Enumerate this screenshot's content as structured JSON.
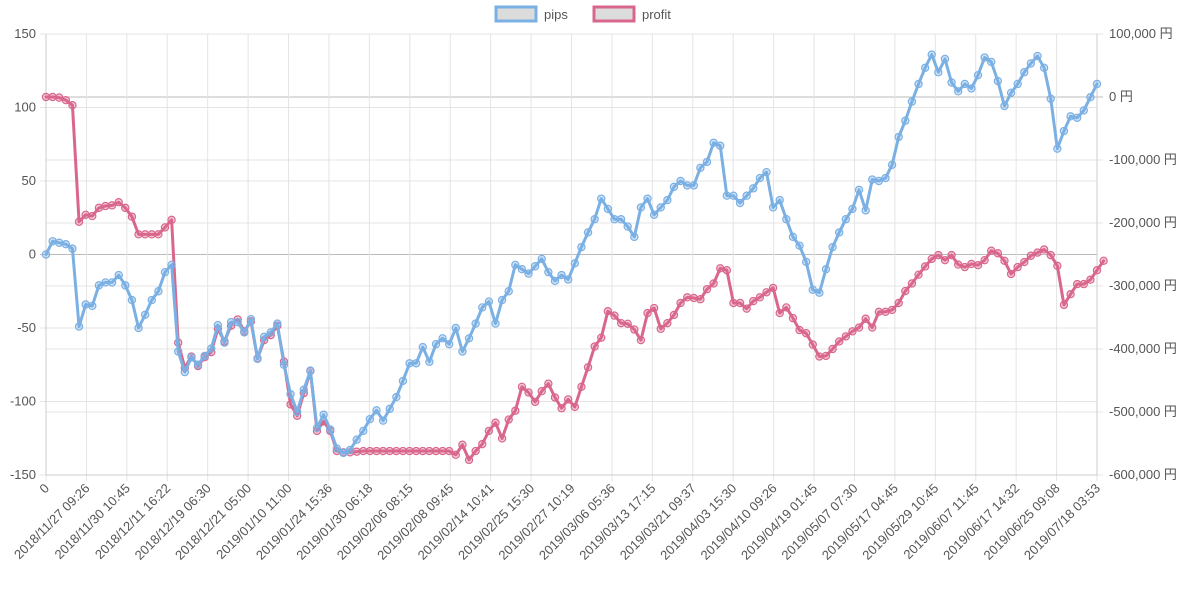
{
  "chart_data": {
    "type": "line",
    "title": "",
    "xlabel": "",
    "ylabel": "",
    "legend_position": "top-center",
    "grid": true,
    "y_left": {
      "min": -150,
      "max": 150,
      "ticks": [
        "150",
        "100",
        "50",
        "0",
        "-50",
        "-100",
        "-150"
      ]
    },
    "y_right": {
      "min": -600000,
      "max": 100000,
      "ticks": [
        "100,000 円",
        "0 円",
        "-100,000 円",
        "-200,000 円",
        "-300,000 円",
        "-400,000 円",
        "-500,000 円",
        "-600,000 円"
      ]
    },
    "x_tick_labels": [
      "0",
      "2018/11/27 09:26",
      "2018/11/30 10:45",
      "2018/12/11 16:22",
      "2018/12/19 06:30",
      "2018/12/21 05:00",
      "2019/01/10 11:00",
      "2019/01/24 15:36",
      "2019/01/30 06:18",
      "2019/02/06 08:15",
      "2019/02/08 09:45",
      "2019/02/14 10:41",
      "2019/02/25 15:30",
      "2019/02/27 10:19",
      "2019/03/06 05:36",
      "2019/03/13 17:15",
      "2019/03/21 09:37",
      "2019/04/03 15:30",
      "2019/04/10 09:26",
      "2019/04/19 01:45",
      "2019/05/07 07:30",
      "2019/05/17 04:45",
      "2019/05/29 10:45",
      "2019/06/07 11:45",
      "2019/06/17 14:32",
      "2019/06/25 09:08",
      "2019/07/18 03:53"
    ],
    "series": [
      {
        "name": "pips",
        "axis": "left",
        "color": "#7ab0e4",
        "values": [
          0,
          9,
          8,
          7,
          4,
          -49,
          -34,
          -35,
          -21,
          -19,
          -19,
          -14,
          -21,
          -31,
          -50,
          -41,
          -31,
          -25,
          -12,
          -7,
          -66,
          -80,
          -70,
          -75,
          -69,
          -64,
          -48,
          -60,
          -46,
          -46,
          -53,
          -44,
          -71,
          -56,
          -53,
          -47,
          -75,
          -95,
          -107,
          -92,
          -79,
          -118,
          -109,
          -119,
          -132,
          -135,
          -133,
          -126,
          -120,
          -112,
          -106,
          -113,
          -105,
          -97,
          -86,
          -74,
          -74,
          -63,
          -73,
          -61,
          -57,
          -61,
          -50,
          -66,
          -57,
          -47,
          -36,
          -32,
          -47,
          -31,
          -25,
          -7,
          -10,
          -13,
          -8,
          -3,
          -12,
          -18,
          -14,
          -17,
          -6,
          5,
          15,
          24,
          38,
          31,
          24,
          24,
          19,
          12,
          32,
          38,
          27,
          32,
          37,
          46,
          50,
          47,
          47,
          59,
          63,
          76,
          74,
          40,
          40,
          35,
          40,
          45,
          52,
          56,
          32,
          37,
          24,
          12,
          6,
          -5,
          -24,
          -26,
          -10,
          5,
          15,
          24,
          31,
          44,
          30,
          51,
          50,
          52,
          61,
          80,
          91,
          104,
          116,
          127,
          136,
          124,
          133,
          117,
          111,
          116,
          113,
          122,
          134,
          131,
          118,
          101,
          110,
          116,
          124,
          130,
          135,
          127,
          106,
          72,
          84,
          94,
          93,
          98,
          107,
          116
        ]
      },
      {
        "name": "profit",
        "axis": "right",
        "color": "#d9678c",
        "values": [
          0,
          0,
          -1000,
          -5000,
          -13000,
          -198000,
          -187000,
          -189000,
          -176000,
          -173000,
          -172000,
          -167000,
          -176000,
          -190000,
          -218000,
          -218000,
          -218000,
          -218000,
          -207000,
          -195000,
          -390000,
          -430000,
          -412000,
          -427000,
          -413000,
          -405000,
          -368000,
          -388000,
          -363000,
          -353000,
          -372000,
          -356000,
          -415000,
          -386000,
          -378000,
          -363000,
          -420000,
          -488000,
          -506000,
          -470000,
          -435000,
          -530000,
          -515000,
          -530000,
          -562000,
          -564000,
          -564000,
          -563000,
          -562000,
          -562000,
          -562000,
          -562000,
          -562000,
          -562000,
          -562000,
          -562000,
          -562000,
          -562000,
          -562000,
          -562000,
          -562000,
          -562000,
          -568000,
          -552000,
          -576000,
          -562000,
          -551000,
          -530000,
          -517000,
          -542000,
          -512000,
          -498000,
          -460000,
          -469000,
          -484000,
          -467000,
          -455000,
          -477000,
          -494000,
          -480000,
          -492000,
          -460000,
          -429000,
          -396000,
          -382000,
          -340000,
          -347000,
          -359000,
          -360000,
          -369000,
          -386000,
          -343000,
          -335000,
          -368000,
          -359000,
          -346000,
          -327000,
          -318000,
          -319000,
          -321000,
          -305000,
          -296000,
          -272000,
          -275000,
          -327000,
          -327000,
          -336000,
          -324000,
          -318000,
          -310000,
          -303000,
          -343000,
          -334000,
          -351000,
          -370000,
          -375000,
          -393000,
          -412000,
          -411000,
          -400000,
          -388000,
          -380000,
          -372000,
          -366000,
          -352000,
          -366000,
          -341000,
          -341000,
          -338000,
          -327000,
          -308000,
          -296000,
          -282000,
          -269000,
          -257000,
          -251000,
          -259000,
          -251000,
          -266000,
          -270000,
          -265000,
          -267000,
          -259000,
          -244000,
          -248000,
          -260000,
          -281000,
          -270000,
          -262000,
          -252000,
          -247000,
          -242000,
          -251000,
          -268000,
          -330000,
          -313000,
          -297000,
          -297000,
          -290000,
          -275000,
          -260000
        ]
      }
    ]
  }
}
